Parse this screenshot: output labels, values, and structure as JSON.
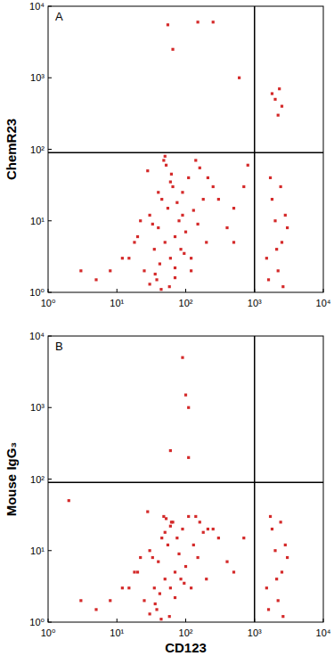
{
  "chart_data": [
    {
      "type": "scatter",
      "title": "A",
      "ylabel": "ChemR23",
      "log": true,
      "color": "#d42a2a",
      "xlim": [
        1,
        10000
      ],
      "ylim": [
        1,
        10000
      ],
      "xticks": [
        {
          "value": 1,
          "label": "10⁰"
        },
        {
          "value": 10,
          "label": "10¹"
        },
        {
          "value": 100,
          "label": "10²"
        },
        {
          "value": 1000,
          "label": "10³"
        },
        {
          "value": 10000,
          "label": "10⁴"
        }
      ],
      "yticks": [
        {
          "value": 1,
          "label": "10⁰"
        },
        {
          "value": 10,
          "label": "10¹"
        },
        {
          "value": 100,
          "label": "10²"
        },
        {
          "value": 1000,
          "label": "10³"
        },
        {
          "value": 10000,
          "label": "10⁴"
        }
      ],
      "gate_x": 1000,
      "gate_y": 90,
      "x": [
        50,
        40,
        60,
        30,
        70,
        25,
        80,
        45,
        55,
        35,
        100,
        120,
        150,
        200,
        20,
        15,
        65,
        90,
        110,
        38,
        42,
        58,
        75,
        28,
        52,
        33,
        85,
        130,
        180,
        250,
        48,
        62,
        44,
        36,
        70,
        95,
        22,
        18,
        12,
        8,
        5,
        3,
        160,
        210,
        300,
        400,
        500,
        140,
        60,
        50,
        1500,
        2000,
        2500,
        1800,
        2200,
        3000,
        1600,
        2400,
        2800,
        1700,
        2100,
        2600,
        2000,
        2300,
        2500,
        1800,
        2200,
        55,
        65,
        150,
        250,
        600,
        500,
        700,
        800,
        30,
        40,
        70,
        120,
        90
      ],
      "values": [
        5,
        8,
        3,
        12,
        6,
        2,
        10,
        20,
        15,
        4,
        7,
        3,
        9,
        5,
        6,
        3,
        30,
        25,
        40,
        1.5,
        2.5,
        1.2,
        18,
        50,
        60,
        9,
        4,
        14,
        20,
        30,
        70,
        45,
        1.1,
        1.8,
        2.2,
        3.5,
        10,
        5,
        3,
        2,
        1.5,
        2,
        55,
        40,
        20,
        8,
        15,
        70,
        35,
        80,
        3,
        10,
        5,
        20,
        2,
        8,
        1.5,
        30,
        12,
        40,
        4,
        1.2,
        500,
        700,
        400,
        600,
        300,
        5500,
        2500,
        6000,
        6000,
        1000,
        5,
        30,
        60,
        1.3,
        25,
        1.6,
        2,
        12
      ]
    },
    {
      "type": "scatter",
      "title": "B",
      "xlabel": "CD123",
      "ylabel": "Mouse IgG₃",
      "log": true,
      "color": "#d42a2a",
      "xlim": [
        1,
        10000
      ],
      "ylim": [
        1,
        10000
      ],
      "xticks": [
        {
          "value": 1,
          "label": "10⁰"
        },
        {
          "value": 10,
          "label": "10¹"
        },
        {
          "value": 100,
          "label": "10²"
        },
        {
          "value": 1000,
          "label": "10³"
        },
        {
          "value": 10000,
          "label": "10⁴"
        }
      ],
      "yticks": [
        {
          "value": 1,
          "label": "10⁰"
        },
        {
          "value": 10,
          "label": "10¹"
        },
        {
          "value": 100,
          "label": "10²"
        },
        {
          "value": 1000,
          "label": "10³"
        },
        {
          "value": 10000,
          "label": "10⁴"
        }
      ],
      "gate_x": 1000,
      "gate_y": 90,
      "x": [
        50,
        40,
        60,
        30,
        70,
        25,
        80,
        45,
        55,
        35,
        100,
        120,
        150,
        200,
        20,
        15,
        65,
        90,
        110,
        38,
        42,
        58,
        75,
        28,
        52,
        33,
        85,
        130,
        180,
        250,
        48,
        62,
        44,
        36,
        70,
        95,
        22,
        18,
        12,
        8,
        5,
        3,
        160,
        210,
        300,
        400,
        2,
        140,
        60,
        50,
        1500,
        2000,
        2500,
        1800,
        2200,
        3000,
        1600,
        2400,
        2800,
        1700,
        2100,
        2600,
        90,
        100,
        110,
        60,
        110,
        500,
        700,
        30
      ],
      "values": [
        4,
        7,
        3,
        10,
        5,
        2,
        9,
        15,
        12,
        3,
        6,
        3,
        8,
        4,
        5,
        3,
        25,
        20,
        30,
        1.5,
        2.5,
        1.2,
        15,
        35,
        28,
        8,
        4,
        12,
        18,
        20,
        30,
        25,
        1.1,
        1.8,
        2.2,
        3.5,
        8,
        5,
        3,
        2,
        1.5,
        2,
        25,
        20,
        15,
        7,
        50,
        30,
        22,
        18,
        3,
        10,
        5,
        20,
        2,
        8,
        1.5,
        25,
        12,
        30,
        4,
        1.2,
        5000,
        1500,
        1000,
        250,
        200,
        5,
        15,
        1.3
      ]
    }
  ]
}
